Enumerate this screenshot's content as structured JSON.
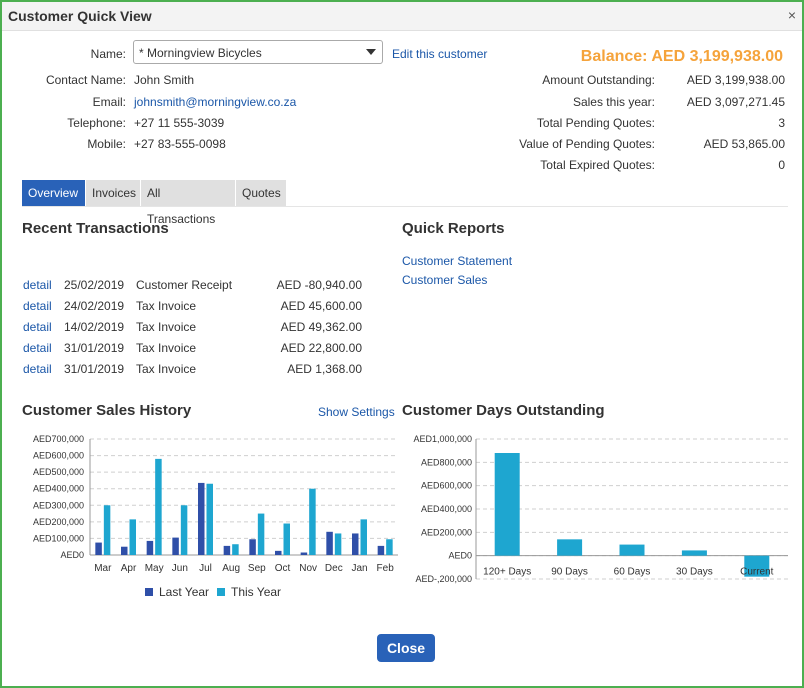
{
  "window": {
    "title": "Customer Quick View",
    "close_glyph": "×"
  },
  "customer": {
    "name_label": "Name:",
    "name_value": "* Morningview Bicycles",
    "edit_link": "Edit this customer",
    "contact_label": "Contact Name:",
    "contact_value": "John Smith",
    "email_label": "Email:",
    "email_value": "johnsmith@morningview.co.za",
    "telephone_label": "Telephone:",
    "telephone_value": "+27 11 555-3039",
    "mobile_label": "Mobile:",
    "mobile_value": "+27 83-555-0098"
  },
  "summary": {
    "balance": "Balance: AED 3,199,938.00",
    "rows": [
      {
        "label": "Amount Outstanding:",
        "value": "AED 3,199,938.00"
      },
      {
        "label": "Sales this year:",
        "value": "AED 3,097,271.45"
      },
      {
        "label": "Total Pending Quotes:",
        "value": "3"
      },
      {
        "label": "Value of Pending Quotes:",
        "value": "AED 53,865.00"
      },
      {
        "label": "Total Expired Quotes:",
        "value": "0"
      }
    ]
  },
  "tabs": [
    "Overview",
    "Invoices",
    "All Transactions",
    "Quotes"
  ],
  "recent": {
    "title": "Recent Transactions",
    "rows": [
      {
        "link": "detail",
        "date": "25/02/2019",
        "type": "Customer Receipt",
        "amount": "AED -80,940.00"
      },
      {
        "link": "detail",
        "date": "24/02/2019",
        "type": "Tax Invoice",
        "amount": "AED 45,600.00"
      },
      {
        "link": "detail",
        "date": "14/02/2019",
        "type": "Tax Invoice",
        "amount": "AED 49,362.00"
      },
      {
        "link": "detail",
        "date": "31/01/2019",
        "type": "Tax Invoice",
        "amount": "AED 22,800.00"
      },
      {
        "link": "detail",
        "date": "31/01/2019",
        "type": "Tax Invoice",
        "amount": "AED 1,368.00"
      }
    ]
  },
  "quick_reports": {
    "title": "Quick Reports",
    "links": [
      "Customer Statement",
      "Customer Sales"
    ]
  },
  "sales_history": {
    "title": "Customer Sales History",
    "settings_link": "Show Settings"
  },
  "days_outstanding": {
    "title": "Customer Days Outstanding"
  },
  "close_button": "Close",
  "colors": {
    "accent": "#2962b8",
    "balance": "#f5a33b",
    "last_year": "#2f4fa8",
    "this_year": "#1ea6d0",
    "link": "#1b57a8"
  },
  "chart_data": [
    {
      "type": "bar",
      "title": "Customer Sales History",
      "categories": [
        "Mar",
        "Apr",
        "May",
        "Jun",
        "Jul",
        "Aug",
        "Sep",
        "Oct",
        "Nov",
        "Dec",
        "Jan",
        "Feb"
      ],
      "series": [
        {
          "name": "Last Year",
          "values": [
            75000,
            50000,
            85000,
            105000,
            435000,
            55000,
            95000,
            25000,
            15000,
            140000,
            130000,
            55000
          ]
        },
        {
          "name": "This Year",
          "values": [
            300000,
            215000,
            580000,
            300000,
            430000,
            65000,
            250000,
            190000,
            400000,
            130000,
            215000,
            95000
          ]
        }
      ],
      "yticks": [
        "AED0",
        "AED100,000",
        "AED200,000",
        "AED300,000",
        "AED400,000",
        "AED500,000",
        "AED600,000",
        "AED700,000"
      ],
      "ylim": [
        0,
        700000
      ],
      "legend": "bottom",
      "grid": true
    },
    {
      "type": "bar",
      "title": "Customer Days Outstanding",
      "categories": [
        "120+ Days",
        "90 Days",
        "60 Days",
        "30 Days",
        "Current"
      ],
      "values": [
        880000,
        140000,
        95000,
        45000,
        -180000
      ],
      "yticks": [
        "AED-,200,000",
        "AED0",
        "AED200,000",
        "AED400,000",
        "AED600,000",
        "AED800,000",
        "AED1,000,000"
      ],
      "ylim": [
        -200000,
        1000000
      ],
      "grid": true
    }
  ]
}
